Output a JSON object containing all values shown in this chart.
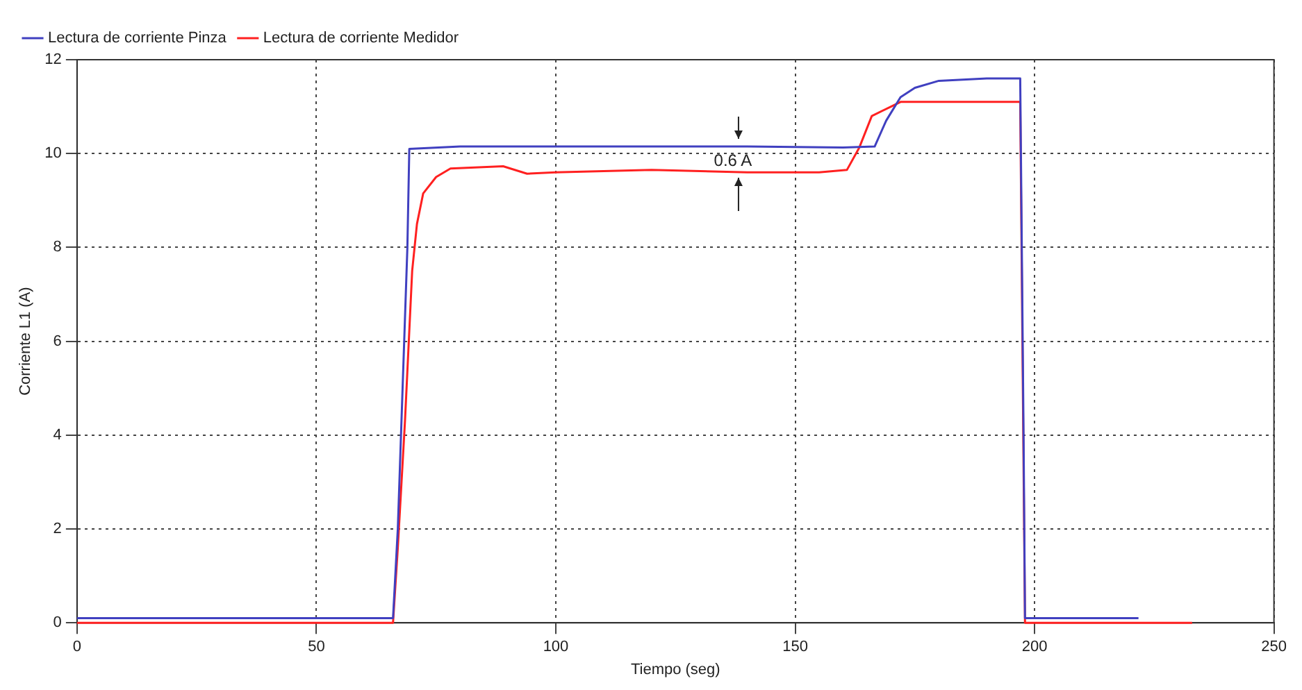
{
  "chart_data": {
    "type": "line",
    "xlabel": "Tiempo (seg)",
    "ylabel": "Corriente L1 (A)",
    "xlim": [
      0,
      250
    ],
    "xticks": [
      0,
      50,
      100,
      150,
      200,
      250
    ],
    "ylim": [
      0,
      12
    ],
    "yticks": [
      0,
      2,
      4,
      6,
      8,
      10,
      12
    ],
    "grid": true,
    "legend": "top left",
    "line_style": "solid",
    "marker": "none",
    "annotations": [
      "0.6 A"
    ],
    "series": [
      {
        "name": "Lectura de corriente Pinza",
        "color": "#4040c0",
        "x": [
          0,
          66,
          67,
          68,
          69,
          69.4,
          80,
          100,
          120,
          140,
          160,
          166.6,
          169,
          172,
          175,
          180,
          190,
          197,
          197.7,
          198,
          210,
          221.7
        ],
        "values": [
          0.1,
          0.1,
          2,
          5,
          8,
          10.1,
          10.15,
          10.15,
          10.15,
          10.15,
          10.13,
          10.15,
          10.7,
          11.2,
          11.4,
          11.55,
          11.6,
          11.6,
          4,
          0.1,
          0.1,
          0.1
        ]
      },
      {
        "name": "Lectura de corriente Medidor",
        "color": "#ff2020",
        "x": [
          0,
          66,
          67,
          68.5,
          70,
          71,
          72.3,
          75,
          78,
          89,
          94,
          100,
          120,
          140,
          155,
          160.8,
          163.4,
          166,
          170,
          172,
          180,
          197,
          198,
          210,
          232.9
        ],
        "values": [
          0,
          0,
          1.6,
          4.3,
          7.5,
          8.5,
          9.15,
          9.5,
          9.68,
          9.73,
          9.57,
          9.6,
          9.65,
          9.6,
          9.6,
          9.65,
          10.13,
          10.8,
          11,
          11.1,
          11.1,
          11.1,
          0,
          0,
          0
        ]
      }
    ]
  }
}
